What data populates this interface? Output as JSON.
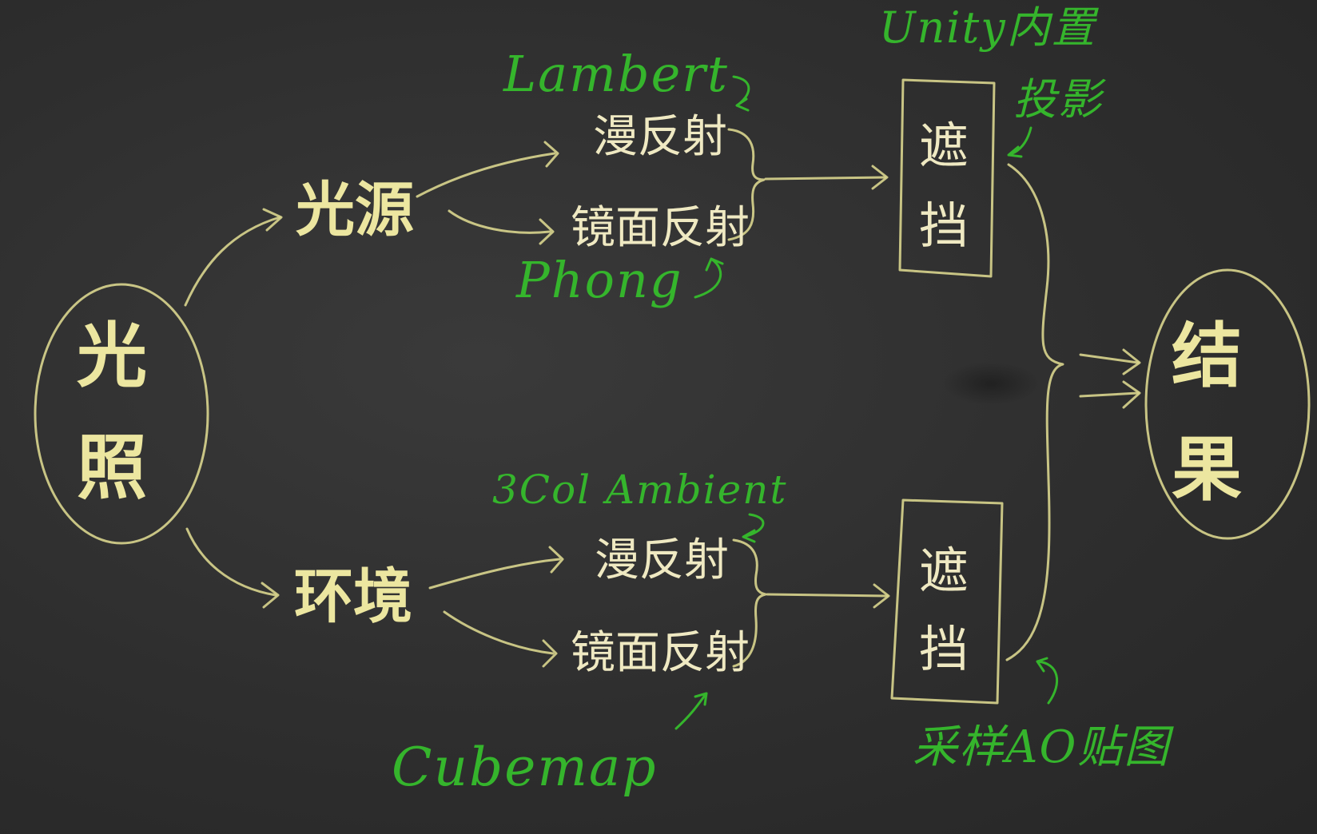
{
  "header_text": "",
  "nodes": {
    "lighting_char1": "光",
    "lighting_char2": "照",
    "light_source": "光源",
    "environment": "环境",
    "result_char1": "结",
    "result_char2": "果",
    "ls_diffuse": "漫反射",
    "ls_specular": "镜面反射",
    "env_diffuse": "漫反射",
    "env_specular": "镜面反射",
    "occl_top_char1": "遮",
    "occl_top_char2": "挡",
    "occl_bot_char1": "遮",
    "occl_bot_char2": "挡"
  },
  "annotations": {
    "lambert": "Lambert",
    "phong": "Phong",
    "unity_builtin": "Unity内置",
    "shadow": "投影",
    "three_col_ambient": "3Col Ambient",
    "cubemap": "Cubemap",
    "ao_map": "采样AO贴图"
  },
  "colors": {
    "chalk_yellow": "#ece6a0",
    "chalk_white": "#efe9c2",
    "chalk_green": "#35b52c",
    "board": "#2e2e2e"
  }
}
